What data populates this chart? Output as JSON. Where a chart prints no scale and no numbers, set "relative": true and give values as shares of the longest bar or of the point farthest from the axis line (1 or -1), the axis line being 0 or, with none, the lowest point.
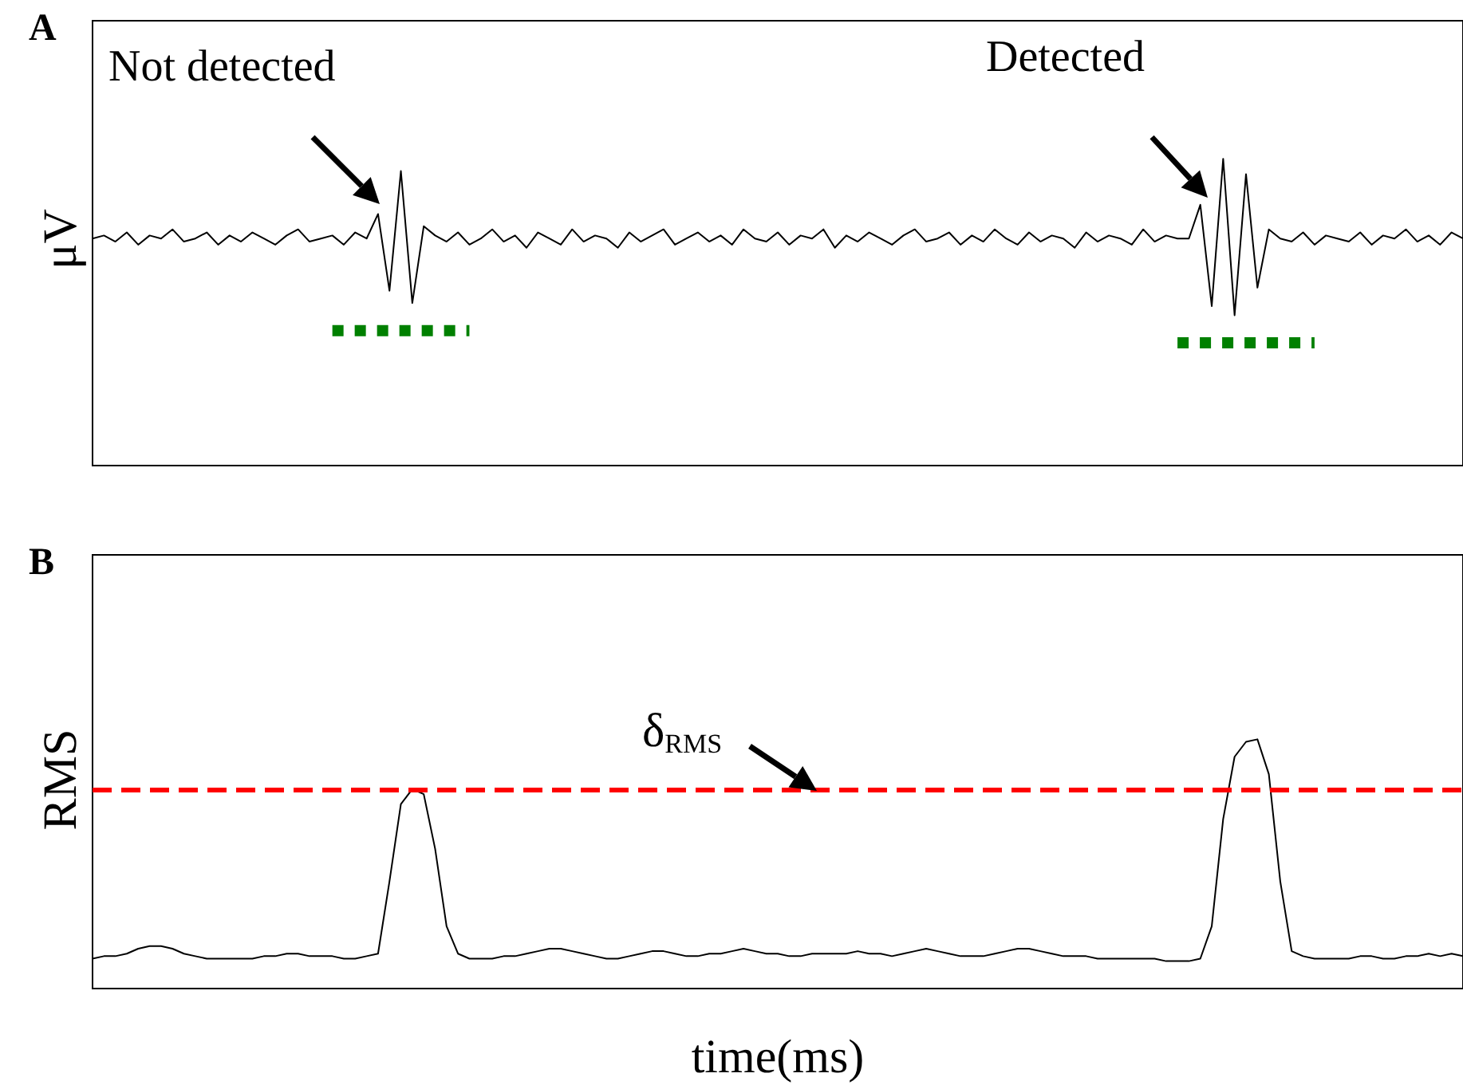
{
  "chart_data": [
    {
      "type": "line",
      "title": "A",
      "ylabel": "μV",
      "relative": true,
      "tick_labels": false,
      "categories": [
        null,
        null,
        null,
        null,
        null,
        null,
        null,
        null,
        null,
        null,
        null,
        null,
        null,
        null,
        null,
        null,
        null,
        null,
        null,
        null,
        null,
        null,
        null,
        null,
        null,
        null,
        null,
        null,
        null,
        null,
        null,
        null,
        null,
        null,
        null,
        null,
        null,
        null,
        null,
        null,
        null,
        null,
        null,
        null,
        null,
        null,
        null,
        null,
        null,
        null,
        null,
        null,
        null,
        null,
        null,
        null,
        null,
        null,
        null,
        null,
        null,
        null,
        null,
        null,
        null,
        null,
        null,
        null,
        null,
        null,
        null,
        null,
        null,
        null,
        null,
        null,
        null,
        null,
        null,
        null,
        null,
        null,
        null,
        null,
        null,
        null,
        null,
        null,
        null,
        null,
        null,
        null,
        null,
        null,
        null,
        null,
        null,
        null,
        null,
        null,
        null,
        null,
        null,
        null,
        null,
        null,
        null,
        null,
        null,
        null,
        null,
        null,
        null,
        null,
        null,
        null,
        null,
        null,
        null,
        null,
        null
      ],
      "annotations": [
        "Not detected",
        "Detected"
      ],
      "series": [
        {
          "color": "#000000",
          "line_style": "solid",
          "values": [
            0.74,
            0.75,
            0.73,
            0.76,
            0.72,
            0.75,
            0.74,
            0.77,
            0.73,
            0.74,
            0.76,
            0.72,
            0.75,
            0.73,
            0.76,
            0.74,
            0.72,
            0.75,
            0.77,
            0.73,
            0.74,
            0.75,
            0.72,
            0.76,
            0.74,
            0.82,
            0.57,
            0.96,
            0.53,
            0.78,
            0.75,
            0.73,
            0.76,
            0.72,
            0.74,
            0.77,
            0.73,
            0.75,
            0.71,
            0.76,
            0.74,
            0.72,
            0.77,
            0.73,
            0.75,
            0.74,
            0.71,
            0.76,
            0.73,
            0.75,
            0.77,
            0.72,
            0.74,
            0.76,
            0.73,
            0.75,
            0.72,
            0.77,
            0.74,
            0.73,
            0.76,
            0.72,
            0.75,
            0.74,
            0.77,
            0.71,
            0.75,
            0.73,
            0.76,
            0.74,
            0.72,
            0.75,
            0.77,
            0.73,
            0.74,
            0.76,
            0.72,
            0.75,
            0.73,
            0.77,
            0.74,
            0.72,
            0.76,
            0.73,
            0.75,
            0.74,
            0.71,
            0.76,
            0.73,
            0.75,
            0.74,
            0.72,
            0.77,
            0.73,
            0.75,
            0.74,
            0.74,
            0.85,
            0.52,
            1.0,
            0.49,
            0.95,
            0.58,
            0.77,
            0.74,
            0.73,
            0.76,
            0.72,
            0.75,
            0.74,
            0.73,
            0.76,
            0.72,
            0.75,
            0.74,
            0.77,
            0.73,
            0.75,
            0.72,
            0.76,
            0.74
          ]
        },
        {
          "color": "#008000",
          "line_style": "dotted",
          "values": [
            null,
            null,
            null,
            null,
            null,
            null,
            null,
            null,
            null,
            null,
            null,
            null,
            null,
            null,
            null,
            null,
            null,
            null,
            null,
            null,
            null,
            0.44,
            0.44,
            0.44,
            0.44,
            0.44,
            0.44,
            0.44,
            0.44,
            0.44,
            0.44,
            0.44,
            0.44,
            0.44,
            null,
            null,
            null,
            null,
            null,
            null,
            null,
            null,
            null,
            null,
            null,
            null,
            null,
            null,
            null,
            null,
            null,
            null,
            null,
            null,
            null,
            null,
            null,
            null,
            null,
            null,
            null,
            null,
            null,
            null,
            null,
            null,
            null,
            null,
            null,
            null,
            null,
            null,
            null,
            null,
            null,
            null,
            null,
            null,
            null,
            null,
            null,
            null,
            null,
            null,
            null,
            null,
            null,
            null,
            null,
            null,
            null,
            null,
            null,
            null,
            null,
            null,
            null,
            null,
            null,
            null,
            null,
            null,
            null,
            null,
            null,
            null,
            null,
            null,
            null,
            null,
            null,
            null,
            null,
            null,
            null,
            null,
            null,
            null,
            null,
            null,
            null
          ]
        },
        {
          "color": "#008000",
          "line_style": "dotted",
          "values": [
            null,
            null,
            null,
            null,
            null,
            null,
            null,
            null,
            null,
            null,
            null,
            null,
            null,
            null,
            null,
            null,
            null,
            null,
            null,
            null,
            null,
            null,
            null,
            null,
            null,
            null,
            null,
            null,
            null,
            null,
            null,
            null,
            null,
            null,
            null,
            null,
            null,
            null,
            null,
            null,
            null,
            null,
            null,
            null,
            null,
            null,
            null,
            null,
            null,
            null,
            null,
            null,
            null,
            null,
            null,
            null,
            null,
            null,
            null,
            null,
            null,
            null,
            null,
            null,
            null,
            null,
            null,
            null,
            null,
            null,
            null,
            null,
            null,
            null,
            null,
            null,
            null,
            null,
            null,
            null,
            null,
            null,
            null,
            null,
            null,
            null,
            null,
            null,
            null,
            null,
            null,
            null,
            null,
            null,
            null,
            0.4,
            0.4,
            0.4,
            0.4,
            0.4,
            0.4,
            0.4,
            0.4,
            0.4,
            0.4,
            0.4,
            0.4,
            0.4,
            null,
            null,
            null,
            null,
            null,
            null,
            null,
            null,
            null,
            null,
            null,
            null,
            null
          ]
        }
      ]
    },
    {
      "type": "line",
      "title": "B",
      "ylabel": "RMS",
      "xlabel": "time(ms)",
      "relative": true,
      "tick_labels": false,
      "categories": [
        null,
        null,
        null,
        null,
        null,
        null,
        null,
        null,
        null,
        null,
        null,
        null,
        null,
        null,
        null,
        null,
        null,
        null,
        null,
        null,
        null,
        null,
        null,
        null,
        null,
        null,
        null,
        null,
        null,
        null,
        null,
        null,
        null,
        null,
        null,
        null,
        null,
        null,
        null,
        null,
        null,
        null,
        null,
        null,
        null,
        null,
        null,
        null,
        null,
        null,
        null,
        null,
        null,
        null,
        null,
        null,
        null,
        null,
        null,
        null,
        null,
        null,
        null,
        null,
        null,
        null,
        null,
        null,
        null,
        null,
        null,
        null,
        null,
        null,
        null,
        null,
        null,
        null,
        null,
        null,
        null,
        null,
        null,
        null,
        null,
        null,
        null,
        null,
        null,
        null,
        null,
        null,
        null,
        null,
        null,
        null,
        null,
        null,
        null,
        null,
        null,
        null,
        null,
        null,
        null,
        null,
        null,
        null,
        null,
        null,
        null,
        null,
        null,
        null,
        null,
        null,
        null,
        null,
        null,
        null,
        null
      ],
      "ref_lines": [
        {
          "axis": "y",
          "value": 0.8,
          "label": "δ$_{RMS}$",
          "color": "#ff0000",
          "line_style": "dashed"
        }
      ],
      "series": [
        {
          "color": "#000000",
          "line_style": "solid",
          "values": [
            0.12,
            0.13,
            0.13,
            0.14,
            0.16,
            0.17,
            0.17,
            0.16,
            0.14,
            0.13,
            0.12,
            0.12,
            0.12,
            0.12,
            0.12,
            0.13,
            0.13,
            0.14,
            0.14,
            0.13,
            0.13,
            0.13,
            0.12,
            0.12,
            0.13,
            0.14,
            0.43,
            0.74,
            0.8,
            0.78,
            0.56,
            0.25,
            0.14,
            0.12,
            0.12,
            0.12,
            0.13,
            0.13,
            0.14,
            0.15,
            0.16,
            0.16,
            0.15,
            0.14,
            0.13,
            0.12,
            0.12,
            0.13,
            0.14,
            0.15,
            0.15,
            0.14,
            0.13,
            0.13,
            0.14,
            0.14,
            0.15,
            0.16,
            0.15,
            0.14,
            0.14,
            0.13,
            0.13,
            0.14,
            0.14,
            0.14,
            0.14,
            0.15,
            0.14,
            0.14,
            0.13,
            0.14,
            0.15,
            0.16,
            0.15,
            0.14,
            0.13,
            0.13,
            0.13,
            0.14,
            0.15,
            0.16,
            0.16,
            0.15,
            0.14,
            0.13,
            0.13,
            0.13,
            0.12,
            0.12,
            0.12,
            0.12,
            0.12,
            0.12,
            0.11,
            0.11,
            0.11,
            0.12,
            0.25,
            0.68,
            0.93,
            0.99,
            1.0,
            0.86,
            0.43,
            0.15,
            0.13,
            0.12,
            0.12,
            0.12,
            0.12,
            0.13,
            0.13,
            0.12,
            0.12,
            0.13,
            0.13,
            0.14,
            0.13,
            0.14,
            0.13
          ]
        }
      ]
    }
  ]
}
